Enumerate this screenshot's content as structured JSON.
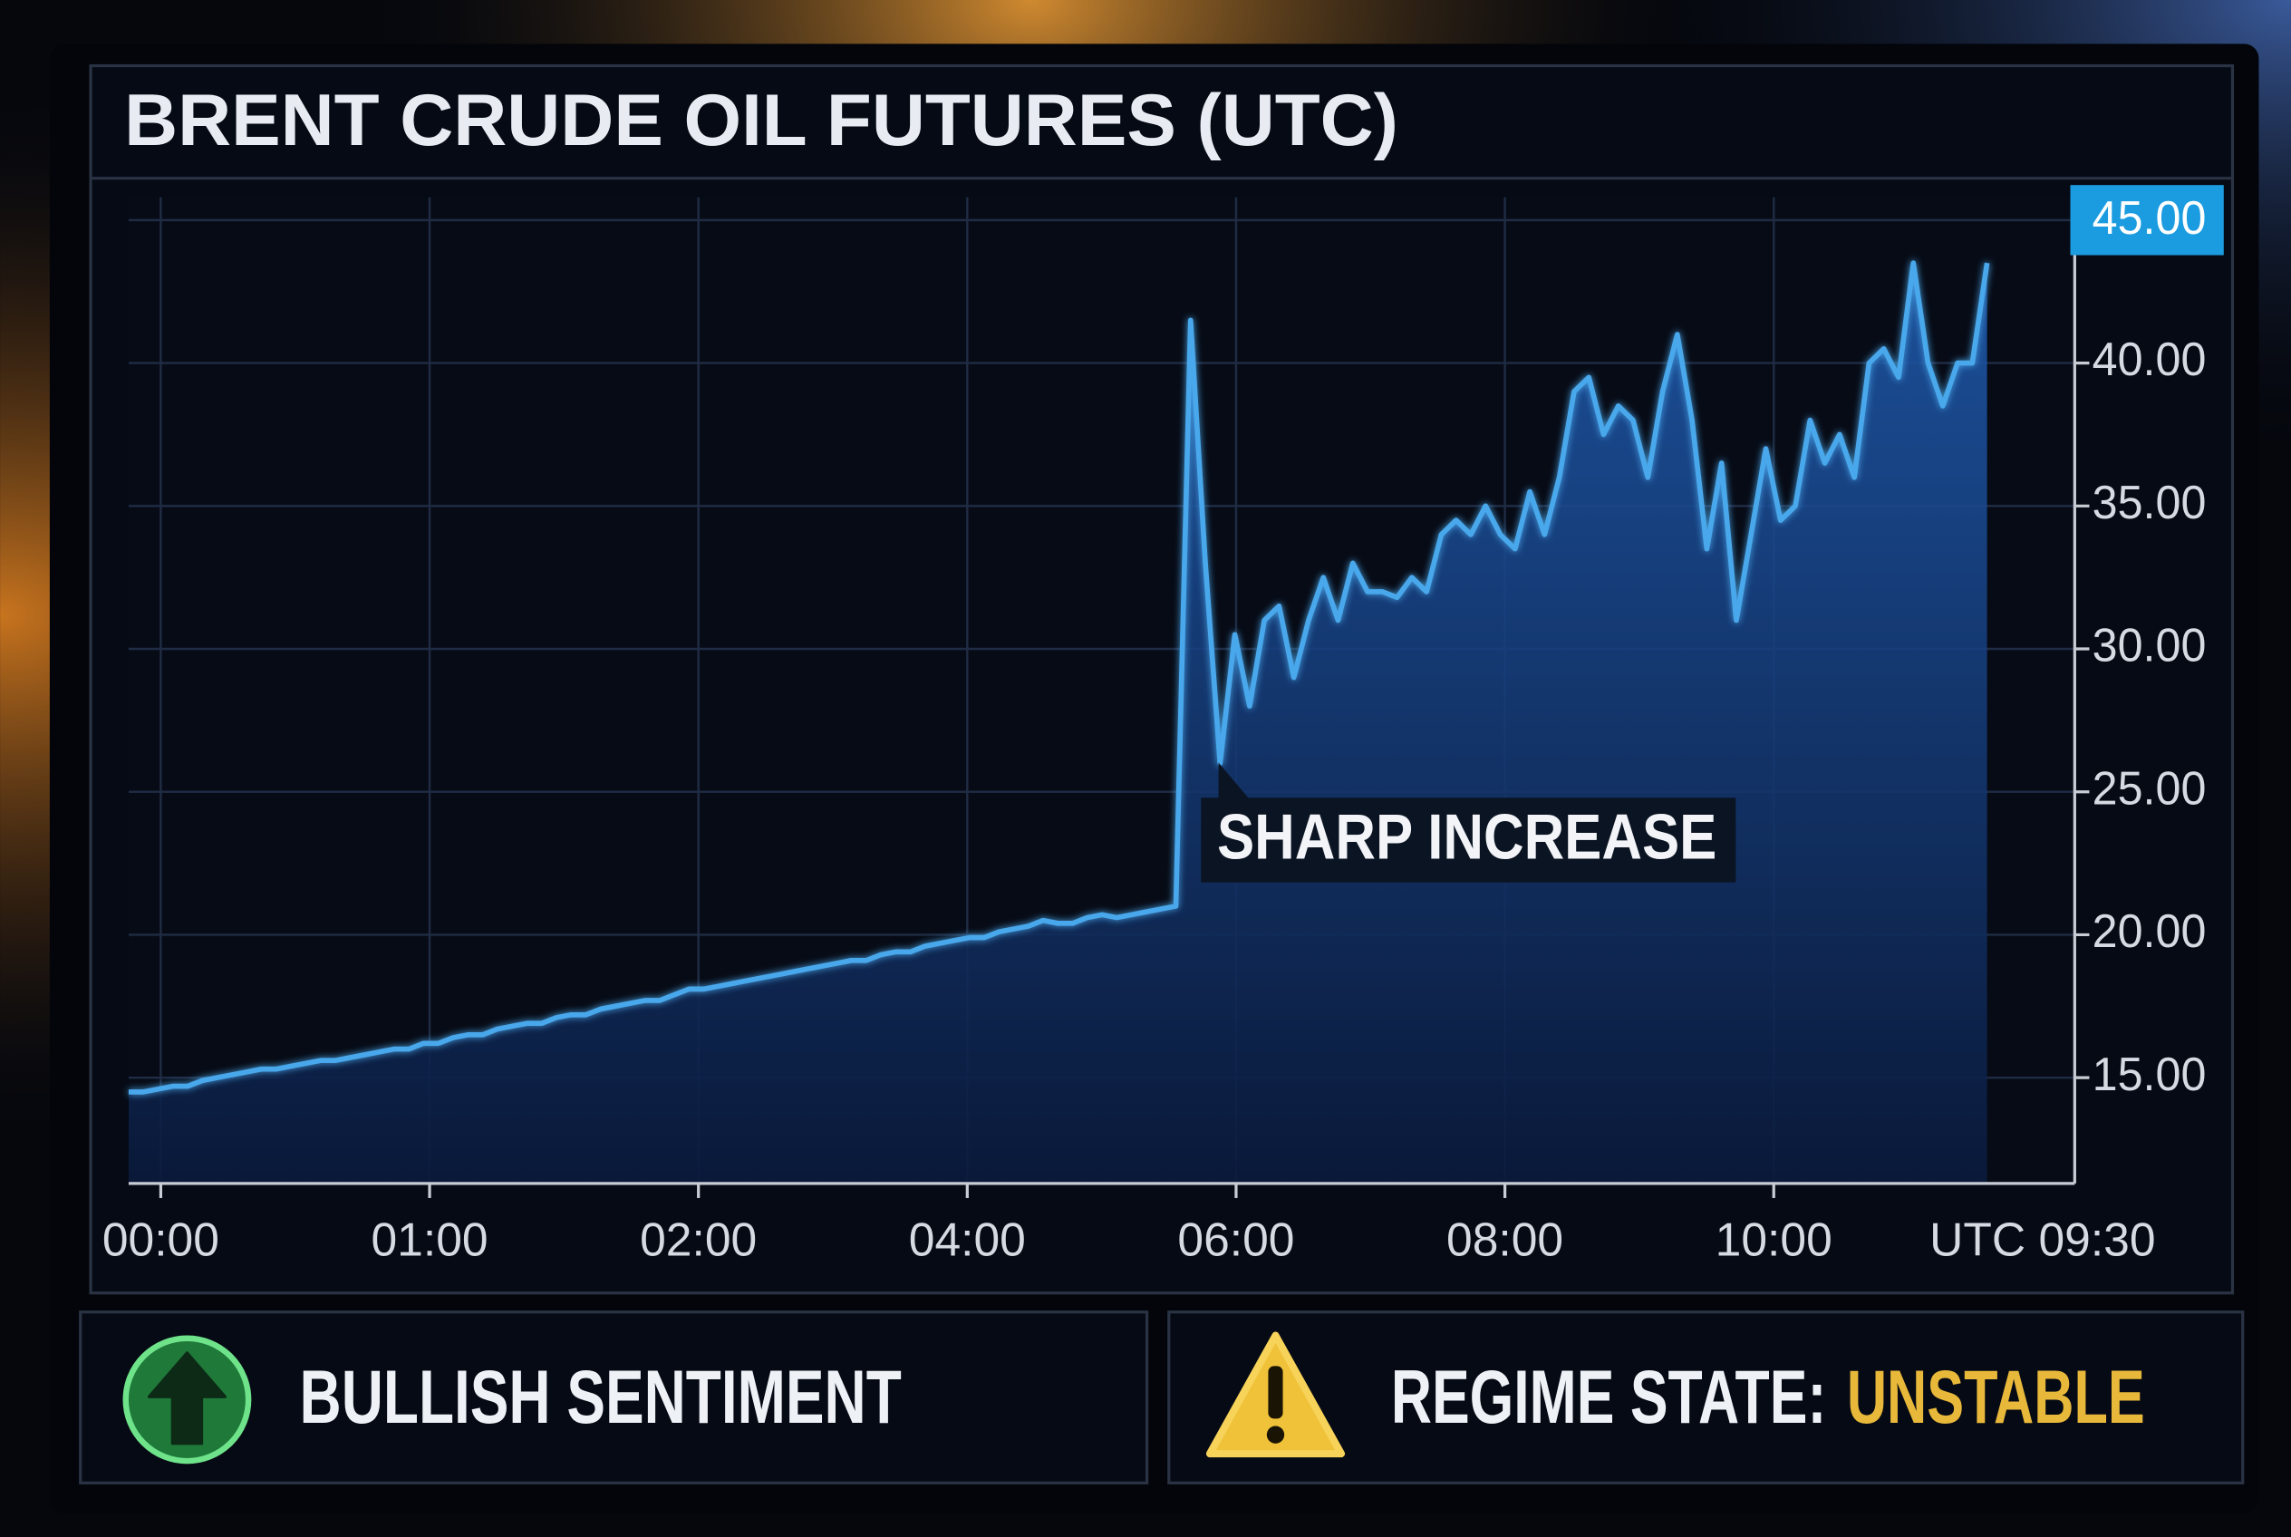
{
  "chart_data": {
    "type": "line",
    "title": "BRENT CRUDE OIL FUTURES (UTC)",
    "annotation": "SHARP INCREASE",
    "color": "#4aa8ec",
    "values": [
      14.5,
      14.5,
      14.6,
      14.7,
      14.7,
      14.9,
      15.0,
      15.1,
      15.2,
      15.3,
      15.3,
      15.4,
      15.5,
      15.6,
      15.6,
      15.7,
      15.8,
      15.9,
      16.0,
      16.0,
      16.2,
      16.2,
      16.4,
      16.5,
      16.5,
      16.7,
      16.8,
      16.9,
      16.9,
      17.1,
      17.2,
      17.2,
      17.4,
      17.5,
      17.6,
      17.7,
      17.7,
      17.9,
      18.1,
      18.1,
      18.2,
      18.3,
      18.4,
      18.5,
      18.6,
      18.7,
      18.8,
      18.9,
      19.0,
      19.1,
      19.1,
      19.3,
      19.4,
      19.4,
      19.6,
      19.7,
      19.8,
      19.9,
      19.9,
      20.1,
      20.2,
      20.3,
      20.5,
      20.4,
      20.4,
      20.6,
      20.7,
      20.6,
      20.7,
      20.8,
      20.9,
      21.0,
      41.5,
      33,
      26,
      30.5,
      28,
      31,
      31.5,
      29,
      31,
      32.5,
      31,
      33,
      32,
      32,
      31.8,
      32.5,
      32,
      34,
      34.5,
      34,
      35,
      34,
      33.5,
      35.5,
      34,
      36,
      39,
      39.5,
      37.5,
      38.5,
      38,
      36,
      39,
      41,
      38,
      33.5,
      36.5,
      31,
      34,
      37,
      34.5,
      35,
      38,
      36.5,
      37.5,
      36,
      40,
      40.5,
      39.5,
      43.5,
      40,
      38.5,
      40,
      40,
      43.5
    ],
    "x_tick_labels": [
      "00:00",
      "01:00",
      "02:00",
      "04:00",
      "06:00",
      "08:00",
      "10:00",
      "UTC 09:30"
    ],
    "ylim": [
      11.3,
      45.8
    ],
    "yticks": [
      {
        "value": 15,
        "label": "15.00"
      },
      {
        "value": 20,
        "label": "20.00"
      },
      {
        "value": 25,
        "label": "25.00"
      },
      {
        "value": 30,
        "label": "30.00"
      },
      {
        "value": 35,
        "label": "35.00"
      },
      {
        "value": 40,
        "label": "40.00"
      }
    ],
    "price_tag": {
      "value": 45,
      "label": "45.00"
    },
    "grid": true
  },
  "status": {
    "sentiment": "BULLISH SENTIMENT",
    "regime_label": "REGIME STATE:",
    "regime_value": "UNSTABLE"
  }
}
